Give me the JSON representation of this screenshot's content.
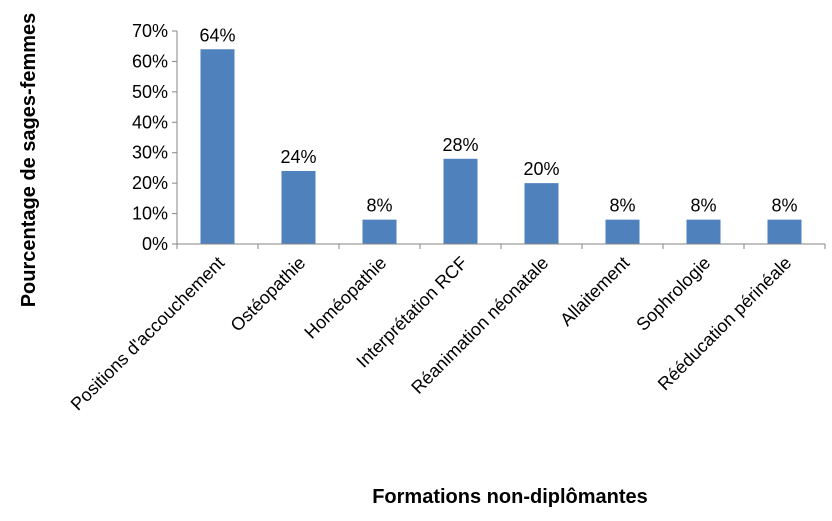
{
  "chart_data": {
    "type": "bar",
    "title": "",
    "xlabel": "Formations non-diplômantes",
    "ylabel": "Pourcentage de sages-femmes",
    "categories": [
      "Positions d'accouchement",
      "Ostéopathie",
      "Homéopathie",
      "Interprétation RCF",
      "Réanimation néonatale",
      "Allaitement",
      "Sophrologie",
      "Rééducation périnéale"
    ],
    "values": [
      64,
      24,
      8,
      28,
      20,
      8,
      8,
      8
    ],
    "data_labels": [
      "64%",
      "24%",
      "8%",
      "28%",
      "20%",
      "8%",
      "8%",
      "8%"
    ],
    "ylim": [
      0,
      70
    ],
    "yticks": [
      0,
      10,
      20,
      30,
      40,
      50,
      60,
      70
    ],
    "ytick_labels": [
      "0%",
      "10%",
      "20%",
      "30%",
      "40%",
      "50%",
      "60%",
      "70%"
    ],
    "grid": false,
    "legend": "none",
    "bar_color": "#4f81bd",
    "axis_color": "#868686"
  }
}
